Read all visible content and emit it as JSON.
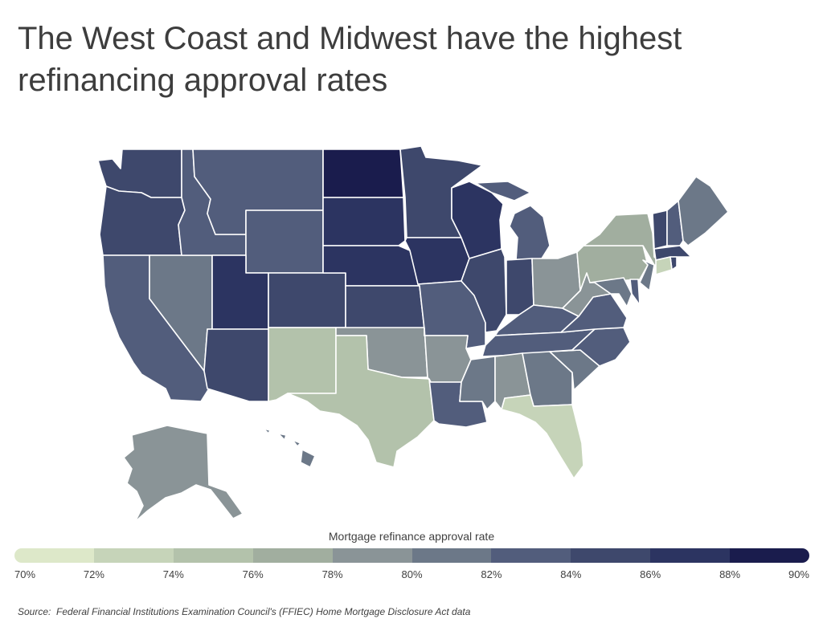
{
  "title": "The West Coast and Midwest have the highest refinancing approval rates",
  "legend": {
    "title": "Mortgage refinance approval rate",
    "ticks": [
      "70%",
      "72%",
      "74%",
      "76%",
      "78%",
      "80%",
      "82%",
      "84%",
      "86%",
      "88%",
      "90%"
    ],
    "colors": [
      "#dde8c9",
      "#c6d4b9",
      "#b3c2ab",
      "#a1ae9f",
      "#8a9497",
      "#6c7888",
      "#525d7c",
      "#3e486c",
      "#2c3461",
      "#1a1c4d"
    ]
  },
  "source_label": "Source:",
  "source_text": "Federal Financial Institutions Examination Council's (FFIEC) Home Mortgage Disclosure Act data",
  "map_data": {
    "type": "choropleth",
    "region": "United States",
    "value_label": "Mortgage refinance approval rate",
    "unit": "%",
    "scale": [
      70,
      90
    ],
    "states": {
      "WA": 85,
      "OR": 85,
      "CA": 83.5,
      "NV": 81,
      "ID": 82.5,
      "MT": 83,
      "WY": 82.5,
      "UT": 87,
      "AZ": 84.5,
      "CO": 85,
      "NM": 75,
      "ND": 89,
      "SD": 86,
      "NE": 86.5,
      "KS": 85,
      "OK": 79,
      "TX": 74,
      "MN": 85,
      "IA": 87,
      "MO": 83,
      "AR": 79,
      "LA": 83,
      "WI": 86.5,
      "IL": 84,
      "MI": 83,
      "IN": 84,
      "OH": 79,
      "KY": 82,
      "TN": 82,
      "MS": 81,
      "AL": 78,
      "GA": 80,
      "FL": 73,
      "SC": 80,
      "NC": 82,
      "VA": 82,
      "WV": 79,
      "PA": 77,
      "NY": 77,
      "VT": 85,
      "NH": 82,
      "ME": 81,
      "MA": 85,
      "RI": 84,
      "CT": 73,
      "NJ": 80,
      "DE": 82,
      "MD": 81,
      "AK": 79,
      "HI": 80
    }
  }
}
